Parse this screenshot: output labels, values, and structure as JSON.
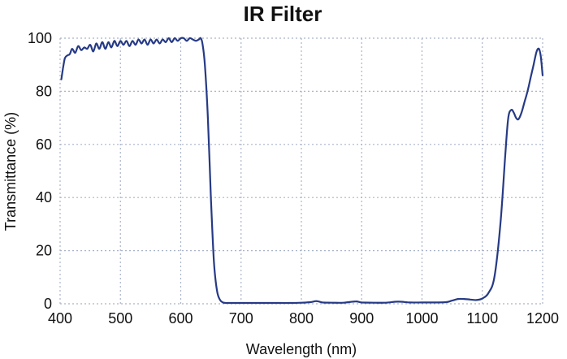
{
  "chart_data": {
    "type": "line",
    "title": "IR Filter",
    "xlabel": "Wavelength (nm)",
    "ylabel": "Transmittance (%)",
    "xlim": [
      400,
      1200
    ],
    "ylim": [
      0,
      100
    ],
    "x_ticks": [
      "400",
      "500",
      "600",
      "700",
      "800",
      "900",
      "1000",
      "1100",
      "1200"
    ],
    "y_ticks": [
      "0",
      "20",
      "40",
      "60",
      "80",
      "100"
    ],
    "grid": true,
    "legend": "none",
    "colors": {
      "line": "#263a85",
      "grid": "#a9b3c8",
      "frame": "#9aa5bc"
    },
    "series": [
      {
        "x": [
          402,
          405,
          408,
          412,
          416,
          420,
          425,
          430,
          435,
          440,
          445,
          450,
          455,
          460,
          465,
          470,
          475,
          480,
          485,
          490,
          495,
          500,
          505,
          510,
          515,
          520,
          525,
          530,
          535,
          540,
          545,
          550,
          555,
          560,
          565,
          570,
          575,
          580,
          585,
          590,
          595,
          600,
          605,
          610,
          615,
          620,
          625,
          630,
          633,
          636,
          640,
          645,
          650,
          655,
          660,
          665,
          670,
          675,
          680,
          700,
          720,
          740,
          760,
          780,
          800,
          815,
          825,
          835,
          850,
          870,
          890,
          900,
          920,
          940,
          960,
          980,
          1000,
          1020,
          1040,
          1050,
          1060,
          1070,
          1080,
          1090,
          1100,
          1110,
          1120,
          1130,
          1138,
          1143,
          1148,
          1152,
          1156,
          1160,
          1165,
          1170,
          1175,
          1180,
          1185,
          1190,
          1194,
          1197,
          1200
        ],
        "y": [
          84.5,
          89,
          92.5,
          93.5,
          94,
          96,
          94.5,
          97,
          95.5,
          96.5,
          96,
          97.5,
          95,
          98,
          96,
          98.5,
          96,
          98.5,
          96.5,
          99,
          97,
          99,
          97.5,
          99,
          97,
          99,
          97.5,
          99.5,
          98,
          99.5,
          97.5,
          99.5,
          98,
          99.5,
          98,
          99.5,
          98.5,
          100,
          98.5,
          100,
          99,
          100,
          100,
          99,
          100,
          99.5,
          99,
          99.5,
          100,
          98,
          90,
          70,
          40,
          16,
          5,
          1.5,
          0.5,
          0.3,
          0.3,
          0.3,
          0.3,
          0.3,
          0.3,
          0.3,
          0.4,
          0.6,
          1,
          0.5,
          0.4,
          0.4,
          0.9,
          0.5,
          0.4,
          0.4,
          0.8,
          0.5,
          0.5,
          0.5,
          0.6,
          1.2,
          1.8,
          1.8,
          1.6,
          1.4,
          2,
          4,
          10,
          30,
          56,
          70,
          73,
          72,
          70,
          69.5,
          72,
          76,
          80,
          85,
          90,
          95,
          96,
          93,
          86
        ]
      }
    ]
  }
}
